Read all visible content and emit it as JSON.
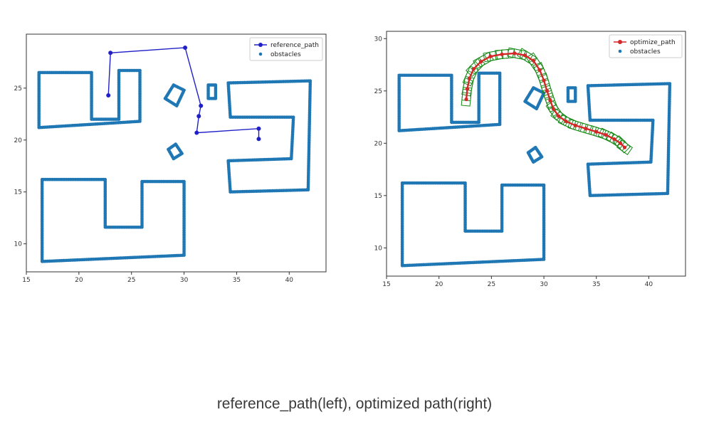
{
  "caption": "reference_path(left), optimized path(right)",
  "colors": {
    "obstacles": "#1f77b4",
    "reference_path": "#2020c8",
    "optimize_path": "#d62728",
    "footprint": "#188a18",
    "axis": "#333333"
  },
  "chart_data": [
    {
      "type": "line",
      "xlim": [
        15,
        43.5
      ],
      "ylim": [
        7.3,
        30.2
      ],
      "xticks": [
        15,
        20,
        25,
        30,
        35,
        40
      ],
      "yticks": [
        10,
        15,
        20,
        25
      ],
      "legend_position": "top-right",
      "series": [
        {
          "name": "reference_path",
          "kind": "line-with-markers",
          "points": [
            [
              22.8,
              24.3
            ],
            [
              23.0,
              28.4
            ],
            [
              30.1,
              28.9
            ],
            [
              31.6,
              23.3
            ],
            [
              31.4,
              22.3
            ],
            [
              31.2,
              20.7
            ],
            [
              37.1,
              21.1
            ],
            [
              37.1,
              20.1
            ]
          ]
        },
        {
          "name": "obstacles",
          "kind": "scatter",
          "outlines": [
            [
              [
                16.2,
                26.5
              ],
              [
                21.2,
                26.5
              ],
              [
                21.2,
                22.0
              ],
              [
                23.8,
                22.0
              ],
              [
                23.8,
                26.7
              ],
              [
                25.8,
                26.7
              ],
              [
                25.8,
                21.8
              ],
              [
                16.2,
                21.2
              ],
              [
                16.2,
                26.5
              ]
            ],
            [
              [
                16.5,
                16.2
              ],
              [
                22.5,
                16.2
              ],
              [
                22.5,
                11.6
              ],
              [
                26.0,
                11.6
              ],
              [
                26.0,
                16.0
              ],
              [
                30.0,
                16.0
              ],
              [
                30.0,
                8.9
              ],
              [
                16.5,
                8.3
              ],
              [
                16.5,
                16.2
              ]
            ],
            [
              [
                34.2,
                25.5
              ],
              [
                42.0,
                25.7
              ],
              [
                41.8,
                15.2
              ],
              [
                34.4,
                15.0
              ],
              [
                34.2,
                18.0
              ],
              [
                40.2,
                18.2
              ],
              [
                40.4,
                22.2
              ],
              [
                34.4,
                22.2
              ],
              [
                34.2,
                25.5
              ]
            ],
            [
              [
                28.2,
                24.0
              ],
              [
                29.0,
                25.3
              ],
              [
                30.0,
                24.8
              ],
              [
                29.3,
                23.3
              ],
              [
                28.2,
                24.0
              ]
            ],
            [
              [
                28.5,
                19.1
              ],
              [
                29.2,
                19.6
              ],
              [
                29.8,
                18.7
              ],
              [
                29.0,
                18.2
              ],
              [
                28.5,
                19.1
              ]
            ],
            [
              [
                32.3,
                25.3
              ],
              [
                33.0,
                25.3
              ],
              [
                33.0,
                24.0
              ],
              [
                32.3,
                24.0
              ],
              [
                32.3,
                25.3
              ]
            ]
          ]
        }
      ]
    },
    {
      "type": "line",
      "xlim": [
        15,
        43.5
      ],
      "ylim": [
        7.3,
        30.7
      ],
      "xticks": [
        15,
        20,
        25,
        30,
        35,
        40
      ],
      "yticks": [
        10,
        15,
        20,
        25,
        30
      ],
      "legend_position": "top-right",
      "series": [
        {
          "name": "optimize_path",
          "kind": "line-with-markers",
          "points": [
            [
              22.6,
              24.2
            ],
            [
              22.7,
              25.2
            ],
            [
              22.9,
              26.2
            ],
            [
              23.3,
              27.1
            ],
            [
              24.0,
              27.8
            ],
            [
              24.9,
              28.3
            ],
            [
              26.0,
              28.5
            ],
            [
              27.2,
              28.6
            ],
            [
              28.2,
              28.4
            ],
            [
              29.0,
              27.9
            ],
            [
              29.6,
              27.0
            ],
            [
              30.0,
              26.0
            ],
            [
              30.3,
              25.0
            ],
            [
              30.6,
              24.1
            ],
            [
              30.9,
              23.3
            ],
            [
              31.4,
              22.6
            ],
            [
              32.1,
              22.1
            ],
            [
              33.0,
              21.7
            ],
            [
              34.0,
              21.4
            ],
            [
              35.0,
              21.1
            ],
            [
              35.9,
              20.8
            ],
            [
              36.7,
              20.4
            ],
            [
              37.3,
              20.0
            ],
            [
              37.7,
              19.6
            ]
          ]
        },
        {
          "name": "obstacles",
          "kind": "scatter",
          "outlines": [
            [
              [
                16.2,
                26.5
              ],
              [
                21.2,
                26.5
              ],
              [
                21.2,
                22.0
              ],
              [
                23.8,
                22.0
              ],
              [
                23.8,
                26.7
              ],
              [
                25.8,
                26.7
              ],
              [
                25.8,
                21.8
              ],
              [
                16.2,
                21.2
              ],
              [
                16.2,
                26.5
              ]
            ],
            [
              [
                16.5,
                16.2
              ],
              [
                22.5,
                16.2
              ],
              [
                22.5,
                11.6
              ],
              [
                26.0,
                11.6
              ],
              [
                26.0,
                16.0
              ],
              [
                30.0,
                16.0
              ],
              [
                30.0,
                8.9
              ],
              [
                16.5,
                8.3
              ],
              [
                16.5,
                16.2
              ]
            ],
            [
              [
                34.2,
                25.5
              ],
              [
                42.0,
                25.7
              ],
              [
                41.8,
                15.2
              ],
              [
                34.4,
                15.0
              ],
              [
                34.2,
                18.0
              ],
              [
                40.2,
                18.2
              ],
              [
                40.4,
                22.2
              ],
              [
                34.4,
                22.2
              ],
              [
                34.2,
                25.5
              ]
            ],
            [
              [
                28.2,
                24.0
              ],
              [
                29.0,
                25.3
              ],
              [
                30.0,
                24.8
              ],
              [
                29.3,
                23.3
              ],
              [
                28.2,
                24.0
              ]
            ],
            [
              [
                28.5,
                19.1
              ],
              [
                29.2,
                19.6
              ],
              [
                29.8,
                18.7
              ],
              [
                29.0,
                18.2
              ],
              [
                28.5,
                19.1
              ]
            ],
            [
              [
                32.3,
                25.3
              ],
              [
                33.0,
                25.3
              ],
              [
                33.0,
                24.0
              ],
              [
                32.3,
                24.0
              ],
              [
                32.3,
                25.3
              ]
            ]
          ]
        }
      ]
    }
  ]
}
